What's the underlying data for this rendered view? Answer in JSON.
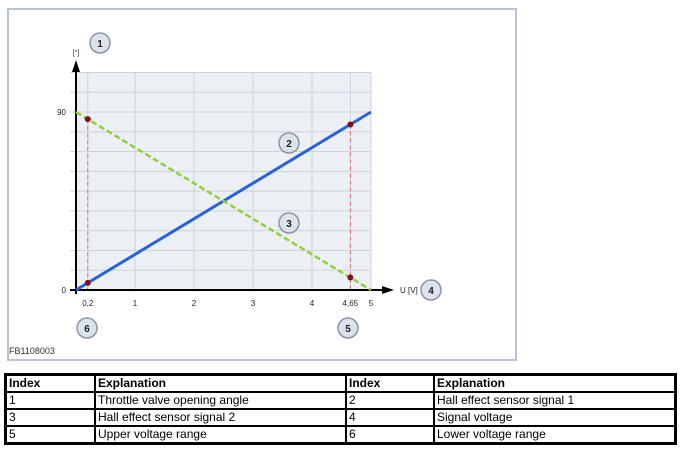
{
  "figure_id": "FB1108003",
  "chart_data": {
    "type": "line",
    "xlabel": "U [V]",
    "ylabel": "[°]",
    "xlim": [
      0,
      5
    ],
    "ylim": [
      0,
      110
    ],
    "x_ticks": [
      "0,2",
      "1",
      "2",
      "3",
      "4",
      "4,65",
      "5"
    ],
    "x_tick_values": [
      0.2,
      1,
      2,
      3,
      4,
      4.65,
      5
    ],
    "y_ticks": [
      "0",
      "90"
    ],
    "y_tick_values": [
      0,
      90
    ],
    "grid": true,
    "series": [
      {
        "callout": "2",
        "style": "solid",
        "color": "#2a62d8",
        "x": [
          0,
          5
        ],
        "y": [
          0,
          90
        ]
      },
      {
        "callout": "3",
        "style": "dashed",
        "color": "#8fd13a",
        "x": [
          0,
          5
        ],
        "y": [
          90,
          0
        ]
      }
    ],
    "markers": [
      {
        "x": 0.2,
        "y": 86.4
      },
      {
        "x": 0.2,
        "y": 3.6
      },
      {
        "x": 4.65,
        "y": 83.7
      },
      {
        "x": 4.65,
        "y": 6.3
      }
    ],
    "marker_color": "#7a1020",
    "limit_lines": [
      0.2,
      4.65
    ],
    "limit_color": "#e06a6a",
    "callouts": [
      "1",
      "2",
      "3",
      "4",
      "5",
      "6"
    ]
  },
  "table": {
    "headers": [
      "Index",
      "Explanation",
      "Index",
      "Explanation"
    ],
    "rows": [
      [
        "1",
        "Throttle valve opening angle",
        "2",
        "Hall effect sensor signal 1"
      ],
      [
        "3",
        "Hall effect sensor signal 2",
        "4",
        "Signal voltage"
      ],
      [
        "5",
        "Upper voltage range",
        "6",
        "Lower voltage range"
      ]
    ]
  }
}
